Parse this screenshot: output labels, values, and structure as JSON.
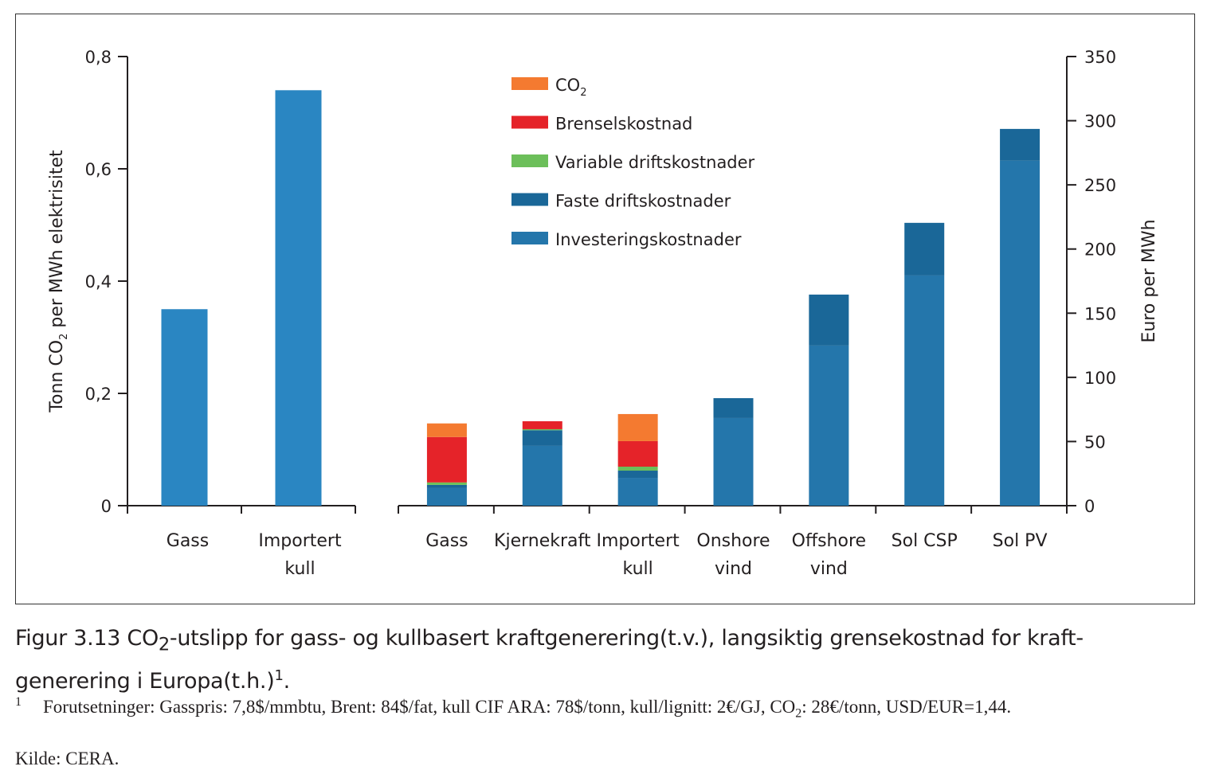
{
  "chart_data": [
    {
      "type": "bar",
      "categories": [
        "Gass",
        "Importert kull"
      ],
      "category_lines": [
        [
          "Gass"
        ],
        [
          "Importert",
          "kull"
        ]
      ],
      "values": [
        0.35,
        0.74
      ],
      "ylabel": "Tonn CO₂ per MWh elektrisitet",
      "ylim": [
        0,
        0.8
      ],
      "yticks": [
        "0",
        "0,2",
        "0,4",
        "0,6",
        "0,8"
      ],
      "axis": "left",
      "color": "#2a86c2"
    },
    {
      "type": "bar",
      "stacked": true,
      "categories": [
        "Gass",
        "Kjernekraft",
        "Importert kull",
        "Onshore vind",
        "Offshore vind",
        "Sol CSP",
        "Sol PV"
      ],
      "category_lines": [
        [
          "Gass"
        ],
        [
          "Kjernekraft"
        ],
        [
          "Importert",
          "kull"
        ],
        [
          "Onshore",
          "vind"
        ],
        [
          "Offshore",
          "vind"
        ],
        [
          "Sol CSP"
        ],
        [
          "Sol PV"
        ]
      ],
      "series": [
        {
          "name": "Investeringskostnader",
          "color": "#2476ab",
          "values": [
            13.7,
            46.6,
            21.7,
            68.3,
            124.8,
            179.4,
            268.8
          ]
        },
        {
          "name": "Faste driftskostnader",
          "color": "#1a6798",
          "values": [
            2.5,
            12.2,
            5.6,
            15.5,
            39.7,
            41.0,
            24.8
          ]
        },
        {
          "name": "Variable driftskostnader",
          "color": "#6cbf5a",
          "values": [
            1.9,
            0.8,
            3.1,
            0,
            0,
            0,
            0
          ]
        },
        {
          "name": "Brenselskostnad",
          "color": "#e52329",
          "values": [
            35.4,
            6.2,
            19.9,
            0,
            0,
            0,
            0
          ]
        },
        {
          "name": "CO2",
          "color": "#f47a30",
          "values": [
            10.6,
            0,
            21.1,
            0,
            0,
            0,
            0
          ]
        }
      ],
      "ylabel": "Euro per MWh",
      "ylim": [
        0,
        350
      ],
      "yticks": [
        "0",
        "50",
        "100",
        "150",
        "200",
        "250",
        "300",
        "350"
      ],
      "axis": "right",
      "legend_placement": "top-center",
      "grid": false
    }
  ],
  "legend": [
    {
      "label": "CO",
      "sub": "2",
      "color": "#f47a30"
    },
    {
      "label": "Brenselskostnad",
      "sub": "",
      "color": "#e52329"
    },
    {
      "label": "Variable driftskostnader",
      "sub": "",
      "color": "#6cbf5a"
    },
    {
      "label": "Faste driftskostnader",
      "sub": "",
      "color": "#1a6798"
    },
    {
      "label": "Investeringskostnader",
      "sub": "",
      "color": "#2476ab"
    }
  ],
  "left_ylabel": {
    "pre": "Tonn CO",
    "sub": "2",
    "post": " per MWh elektrisitet"
  },
  "caption": {
    "prefix": "Figur 3.13  CO",
    "sub": "2",
    "text": "-utslipp for gass- og kullbasert kraftgenerering(t.v.), langsiktig grensekostnad for kraft-generering i Europa(t.h.)",
    "sup": "1",
    "end": "."
  },
  "footnote": {
    "number": "1",
    "text_a": "Forutsetninger: Gasspris: 7,8$/mmbtu, Brent: 84$/fat, kull CIF ARA: 78$/tonn, kull/lignitt: 2€/GJ, CO",
    "sub": "2",
    "text_b": ": 28€/tonn, USD/EUR=1,44."
  },
  "source": "Kilde: CERA."
}
